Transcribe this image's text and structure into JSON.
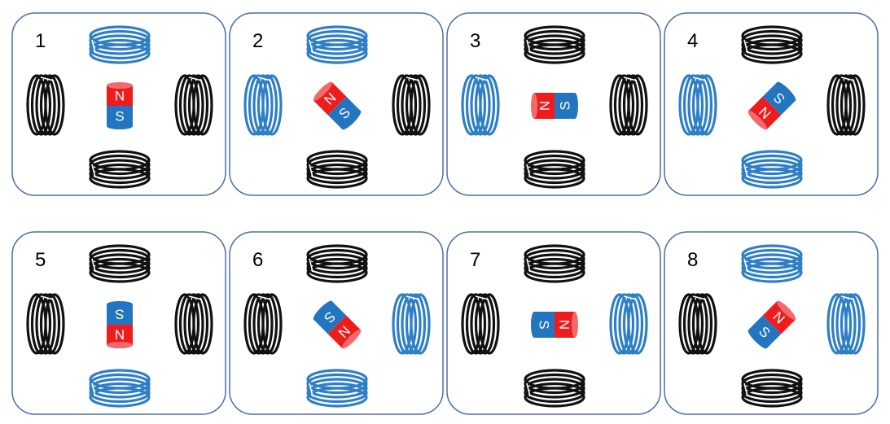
{
  "colors": {
    "coil_active": "#2f7fc6",
    "coil_inactive": "#111111",
    "magnet_north": "#ee1c1c",
    "magnet_north_cap": "#f36a6a",
    "magnet_south": "#2475c0",
    "magnet_south_cap": "#5b9bd5",
    "panel_border": "#4a6fa5"
  },
  "pole_labels": {
    "north": "N",
    "south": "S"
  },
  "panels": [
    {
      "number": "1",
      "magnet_angle_deg": 0,
      "active_coils": [
        "top"
      ]
    },
    {
      "number": "2",
      "magnet_angle_deg": -45,
      "active_coils": [
        "top",
        "left"
      ]
    },
    {
      "number": "3",
      "magnet_angle_deg": -90,
      "active_coils": [
        "left"
      ]
    },
    {
      "number": "4",
      "magnet_angle_deg": 225,
      "active_coils": [
        "left",
        "bottom"
      ]
    },
    {
      "number": "5",
      "magnet_angle_deg": 180,
      "active_coils": [
        "bottom"
      ]
    },
    {
      "number": "6",
      "magnet_angle_deg": 135,
      "active_coils": [
        "bottom",
        "right"
      ]
    },
    {
      "number": "7",
      "magnet_angle_deg": 90,
      "active_coils": [
        "right"
      ]
    },
    {
      "number": "8",
      "magnet_angle_deg": 45,
      "active_coils": [
        "right",
        "top"
      ]
    }
  ]
}
